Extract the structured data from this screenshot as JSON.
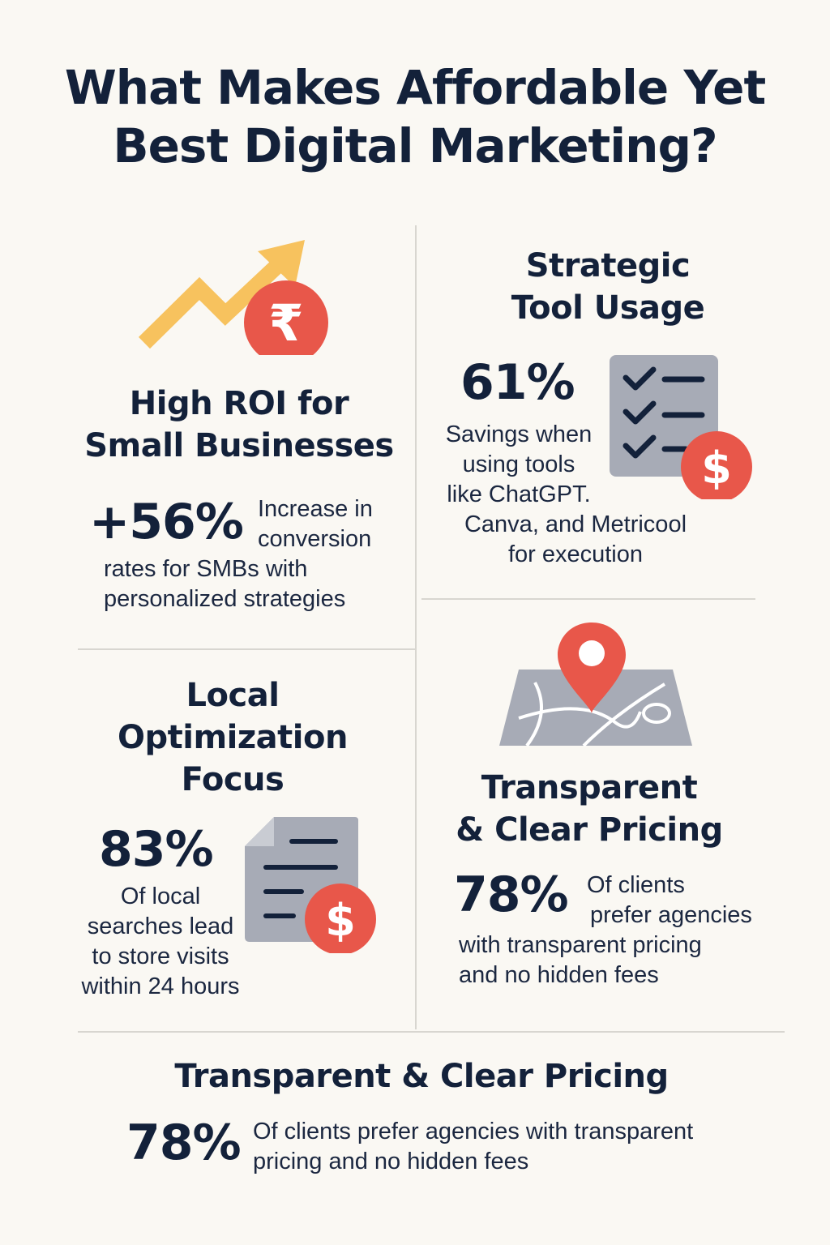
{
  "title": {
    "line1": "What Makes Affordable Yet",
    "line2": "Best Digital Marketing?"
  },
  "colors": {
    "navy": "#13213a",
    "red": "#e8574a",
    "yellow": "#f7c25e",
    "gray": "#a7abb6",
    "background": "#faf8f3"
  },
  "sections": {
    "roi": {
      "heading_line1": "High ROI for",
      "heading_line2": "Small Businesses",
      "stat": "+56%",
      "desc_line1": "Increase in",
      "desc_line2": "conversion",
      "desc_line3": "rates for SMBs with",
      "desc_line4": "personalized strategies",
      "icons": [
        "trend-arrow-icon",
        "rupee-coin-icon"
      ]
    },
    "tools": {
      "heading_line1": "Strategic",
      "heading_line2": "Tool Usage",
      "stat": "61%",
      "desc_line1": "Savings when",
      "desc_line2": "using tools",
      "desc_line3": "like ChatGPT.",
      "desc_line4": "Canva, and Metricool",
      "desc_line5": "for execution",
      "icons": [
        "checklist-icon",
        "dollar-coin-icon"
      ]
    },
    "local": {
      "heading_line1": "Local",
      "heading_line2": "Optimization",
      "heading_line3": "Focus",
      "stat": "83%",
      "desc_line1": "Of local",
      "desc_line2": "searches lead",
      "desc_line3": "to store visits",
      "desc_line4": "within 24 hours",
      "icons": [
        "document-icon",
        "dollar-coin-icon"
      ]
    },
    "pricing": {
      "heading_line1": "Transparent",
      "heading_line2": "& Clear Pricing",
      "stat": "78%",
      "desc_line1": "Of clients",
      "desc_line2": "prefer agencies",
      "desc_line3": "with transparent pricing",
      "desc_line4": "and no hidden fees",
      "icons": [
        "map-icon",
        "location-pin-icon"
      ]
    },
    "bottom": {
      "heading": "Transparent & Clear Pricing",
      "stat": "78%",
      "desc_line1": "Of clients prefer agencies with transparent",
      "desc_line2": "pricing and no hidden fees"
    }
  }
}
